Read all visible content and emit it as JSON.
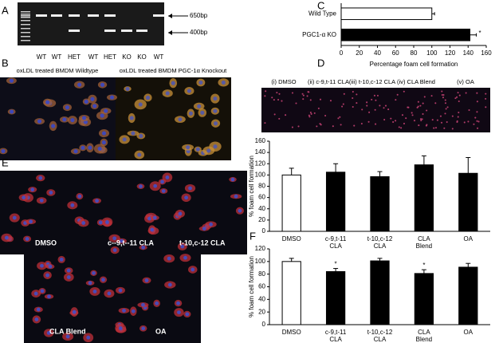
{
  "panel_labels": [
    "A",
    "B",
    "C",
    "D",
    "E",
    "F"
  ],
  "gel": {
    "lanes": [
      "WT",
      "WT",
      "HET",
      "WT",
      "HET",
      "KO",
      "KO",
      "WT"
    ],
    "markers": [
      "650bp",
      "400bp"
    ]
  },
  "micrographs_b": [
    "oxLDL treated BMDM Wildtype",
    "oxLDL treated BMDM PGC-1α Knockout"
  ],
  "micrographs_d": [
    "(i) DMSO",
    "(ii) c-9,t-11 CLA",
    "(iii) t-10,c-12 CLA",
    "(iv) CLA Blend",
    "(v) OA"
  ],
  "micrographs_e": [
    "DMSO",
    "c--9,t--11 CLA",
    "t-10,c-12 CLA",
    "CLA Blend",
    "OA"
  ],
  "chart_data": [
    {
      "type": "bar",
      "orientation": "horizontal",
      "categories": [
        "Wild Type",
        "PGC1-α KO"
      ],
      "values": [
        100,
        142
      ],
      "errors": [
        3,
        7
      ],
      "colors": [
        "#ffffff",
        "#000000"
      ],
      "significance": [
        null,
        "*"
      ],
      "xlabel": "Percentage foam cell formation",
      "xlim": [
        0,
        160
      ],
      "xticks": [
        0,
        20,
        40,
        60,
        80,
        100,
        120,
        140,
        160
      ]
    },
    {
      "type": "bar",
      "orientation": "vertical",
      "categories": [
        "DMSO",
        "c-9,t-11\nCLA",
        "t-10,c-12\nCLA",
        "CLA\nBlend",
        "OA"
      ],
      "values": [
        100,
        105,
        97,
        118,
        103
      ],
      "errors": [
        12,
        15,
        9,
        16,
        28
      ],
      "colors": [
        "#ffffff",
        "#000000",
        "#000000",
        "#000000",
        "#000000"
      ],
      "significance": [
        null,
        null,
        null,
        null,
        null
      ],
      "ylabel": "% foam cell formation",
      "ylim": [
        0,
        160
      ],
      "yticks": [
        0,
        20,
        40,
        60,
        80,
        100,
        120,
        140,
        160
      ]
    },
    {
      "type": "bar",
      "orientation": "vertical",
      "categories": [
        "DMSO",
        "c-9,t-11\nCLA",
        "t-10,c-12\nCLA",
        "CLA\nBlend",
        "OA"
      ],
      "values": [
        100,
        84,
        101,
        81,
        91
      ],
      "errors": [
        5,
        5,
        4,
        6,
        6
      ],
      "colors": [
        "#ffffff",
        "#000000",
        "#000000",
        "#000000",
        "#000000"
      ],
      "significance": [
        null,
        "*",
        null,
        "*",
        null
      ],
      "ylabel": "% foam cell formation",
      "ylim": [
        0,
        120
      ],
      "yticks": [
        0,
        20,
        40,
        60,
        80,
        100,
        120
      ]
    }
  ]
}
